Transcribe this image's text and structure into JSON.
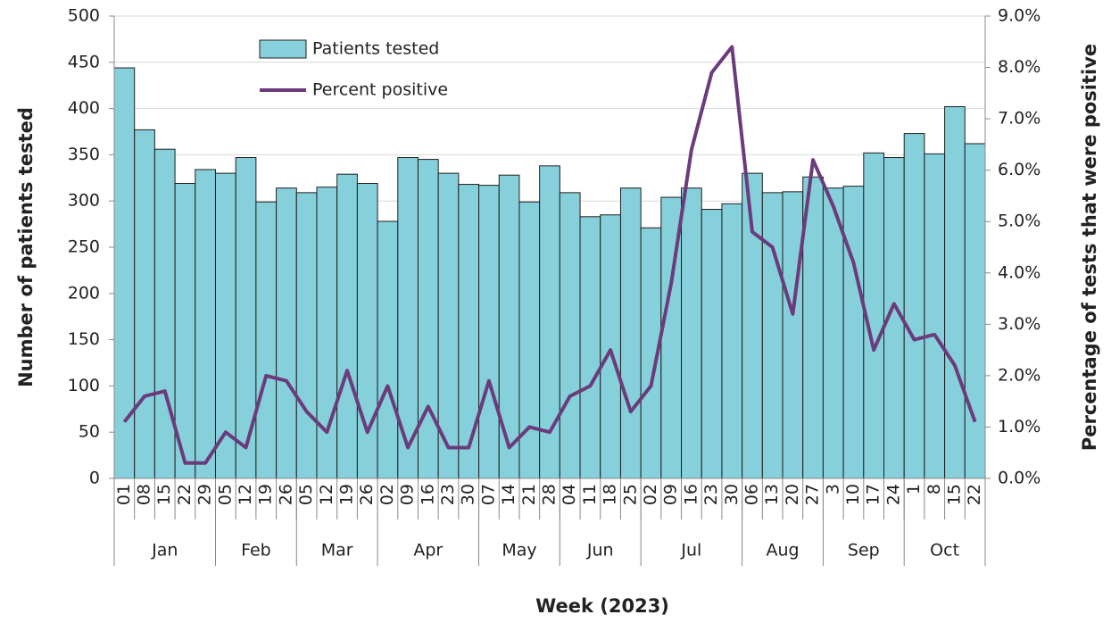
{
  "chart_data": {
    "type": "bar_line",
    "x_label": "Week (2023)",
    "y_label": "Number of patients tested",
    "y2_label": "Percentage of tests that were positive",
    "category_groups": [
      {
        "name": "Jan",
        "categories": [
          "01",
          "08",
          "15",
          "22",
          "29"
        ]
      },
      {
        "name": "Feb",
        "categories": [
          "05",
          "12",
          "19",
          "26"
        ]
      },
      {
        "name": "Mar",
        "categories": [
          "05",
          "12",
          "19",
          "26"
        ]
      },
      {
        "name": "Apr",
        "categories": [
          "02",
          "09",
          "16",
          "23",
          "30"
        ]
      },
      {
        "name": "May",
        "categories": [
          "07",
          "14",
          "21",
          "28"
        ]
      },
      {
        "name": "Jun",
        "categories": [
          "04",
          "11",
          "18",
          "25"
        ]
      },
      {
        "name": "Jul",
        "categories": [
          "02",
          "09",
          "16",
          "23",
          "30"
        ]
      },
      {
        "name": "Aug",
        "categories": [
          "06",
          "13",
          "20",
          "27"
        ]
      },
      {
        "name": "Sep",
        "categories": [
          "3",
          "10",
          "17",
          "24"
        ]
      },
      {
        "name": "Oct",
        "categories": [
          "1",
          "8",
          "15",
          "22"
        ]
      }
    ],
    "series": [
      {
        "name": "Patients tested",
        "type": "bar",
        "color": "#86d0db",
        "values": [
          444,
          377,
          356,
          319,
          334,
          330,
          347,
          299,
          314,
          309,
          315,
          329,
          319,
          278,
          347,
          345,
          330,
          318,
          317,
          328,
          299,
          338,
          309,
          283,
          285,
          314,
          271,
          304,
          314,
          291,
          297,
          330,
          309,
          310,
          326,
          314,
          316,
          352,
          347,
          373,
          351,
          402,
          362
        ]
      },
      {
        "name": "Percent positive",
        "type": "line",
        "axis": "y2",
        "color": "#6b3b7b",
        "values": [
          1.1,
          1.6,
          1.7,
          0.3,
          0.3,
          0.9,
          0.6,
          2.0,
          1.9,
          1.3,
          0.9,
          2.1,
          0.9,
          1.8,
          0.6,
          1.4,
          0.6,
          0.6,
          1.9,
          0.6,
          1.0,
          0.9,
          1.6,
          1.8,
          2.5,
          1.3,
          1.8,
          3.8,
          6.4,
          7.9,
          8.4,
          4.8,
          4.5,
          3.2,
          6.2,
          5.3,
          4.2,
          2.5,
          3.4,
          2.7,
          2.8,
          2.2,
          1.1
        ]
      }
    ],
    "ylim": [
      0,
      500
    ],
    "yticks": [
      0,
      50,
      100,
      150,
      200,
      250,
      300,
      350,
      400,
      450,
      500
    ],
    "y2lim": [
      0,
      9
    ],
    "y2ticks": [
      {
        "value": 0,
        "label": "0.0%"
      },
      {
        "value": 1,
        "label": "1.0%"
      },
      {
        "value": 2,
        "label": "2.0%"
      },
      {
        "value": 3,
        "label": "3.0%"
      },
      {
        "value": 4,
        "label": "4.0%"
      },
      {
        "value": 5,
        "label": "5.0%"
      },
      {
        "value": 6,
        "label": "6.0%"
      },
      {
        "value": 7,
        "label": "7.0%"
      },
      {
        "value": 8,
        "label": "8.0%"
      },
      {
        "value": 9,
        "label": "9.0%"
      }
    ],
    "grid": true
  }
}
